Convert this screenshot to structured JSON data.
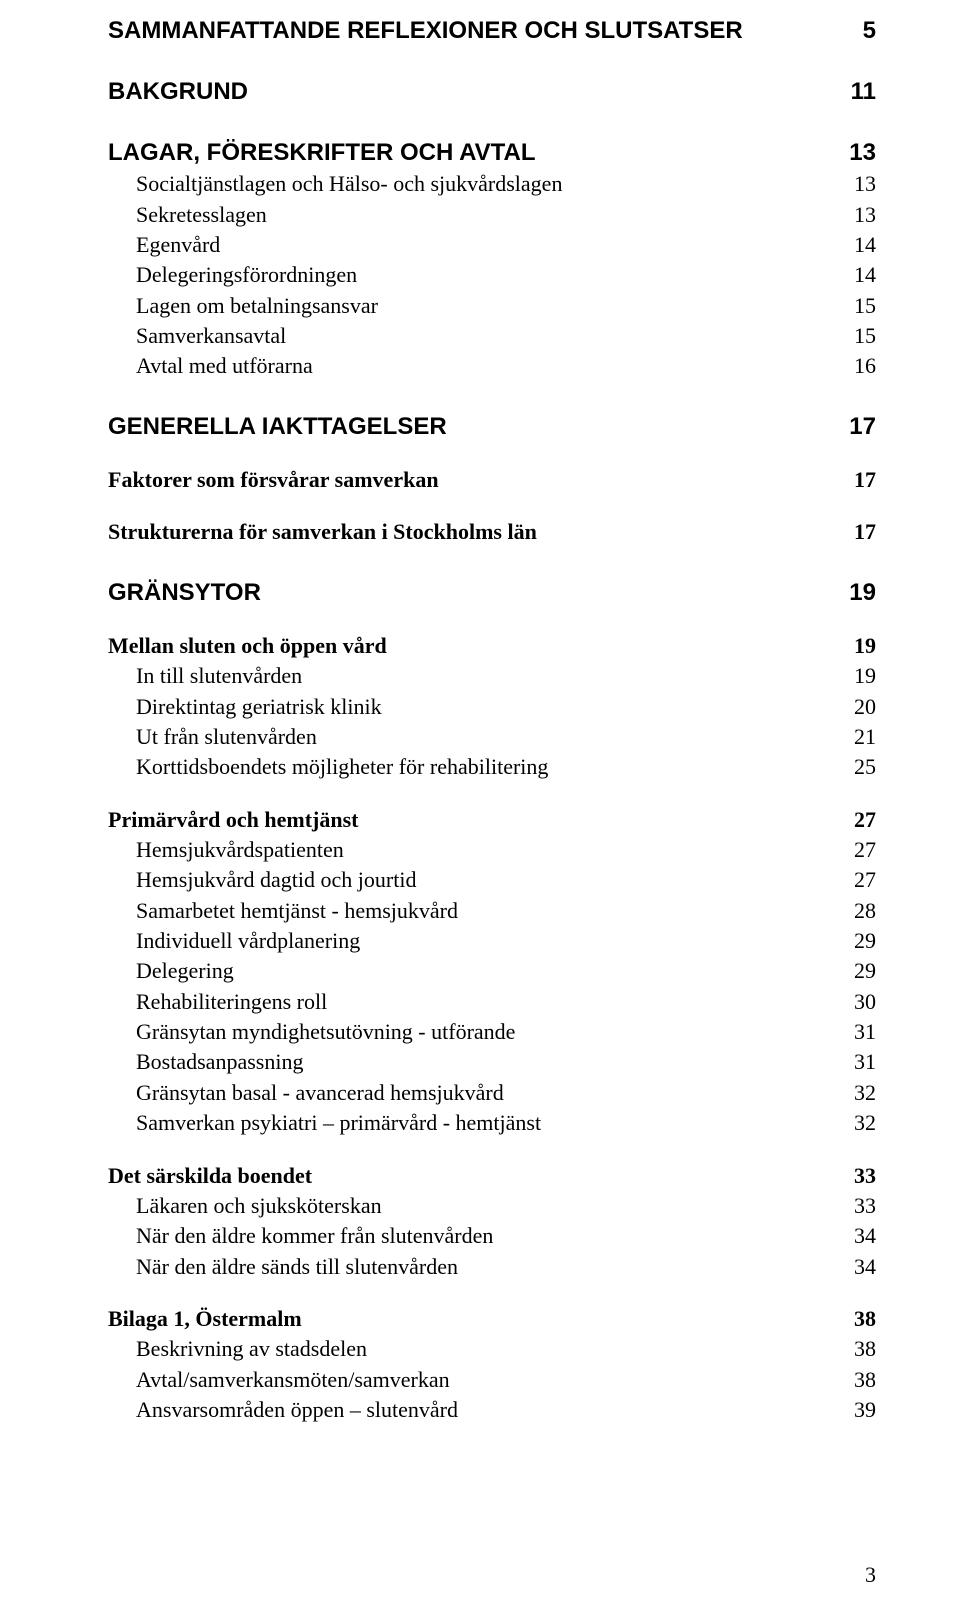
{
  "toc": {
    "groups": [
      {
        "heading": {
          "label": "SAMMANFATTANDE REFLEXIONER OCH SLUTSATSER",
          "page": "5"
        },
        "sections": []
      },
      {
        "heading": {
          "label": "BAKGRUND",
          "page": "11"
        },
        "sections": []
      },
      {
        "heading": {
          "label": "LAGAR, FÖRESKRIFTER OCH AVTAL",
          "page": "13"
        },
        "sections": [
          {
            "label": "Socialtjänstlagen och Hälso- och sjukvårdslagen",
            "page": "13",
            "indent": 1,
            "bold": false
          },
          {
            "label": "Sekretesslagen",
            "page": "13",
            "indent": 1,
            "bold": false
          },
          {
            "label": "Egenvård",
            "page": "14",
            "indent": 1,
            "bold": false
          },
          {
            "label": "Delegeringsförordningen",
            "page": "14",
            "indent": 1,
            "bold": false
          },
          {
            "label": "Lagen om betalningsansvar",
            "page": "15",
            "indent": 1,
            "bold": false
          },
          {
            "label": "Samverkansavtal",
            "page": "15",
            "indent": 1,
            "bold": false
          },
          {
            "label": "Avtal med utförarna",
            "page": "16",
            "indent": 1,
            "bold": false
          }
        ]
      },
      {
        "heading": {
          "label": "GENERELLA IAKTTAGELSER",
          "page": "17"
        },
        "sections": [
          {
            "label": "Faktorer som försvårar samverkan",
            "page": "17",
            "indent": 0,
            "bold": true,
            "gap_before": true
          },
          {
            "label": "Strukturerna för samverkan i Stockholms län",
            "page": "17",
            "indent": 0,
            "bold": true,
            "gap_before": true
          }
        ]
      },
      {
        "heading": {
          "label": "GRÄNSYTOR",
          "page": "19"
        },
        "sections": [
          {
            "label": "Mellan sluten och öppen vård",
            "page": "19",
            "indent": 0,
            "bold": true,
            "gap_before": true
          },
          {
            "label": "In till slutenvården",
            "page": "19",
            "indent": 1,
            "bold": false
          },
          {
            "label": "Direktintag geriatrisk klinik",
            "page": "20",
            "indent": 1,
            "bold": false
          },
          {
            "label": "Ut från slutenvården",
            "page": "21",
            "indent": 1,
            "bold": false
          },
          {
            "label": "Korttidsboendets möjligheter för rehabilitering",
            "page": "25",
            "indent": 1,
            "bold": false
          },
          {
            "label": "Primärvård och hemtjänst",
            "page": "27",
            "indent": 0,
            "bold": true,
            "gap_before": true
          },
          {
            "label": "Hemsjukvårdspatienten",
            "page": "27",
            "indent": 1,
            "bold": false
          },
          {
            "label": "Hemsjukvård dagtid och jourtid",
            "page": "27",
            "indent": 1,
            "bold": false
          },
          {
            "label": "Samarbetet hemtjänst - hemsjukvård",
            "page": "28",
            "indent": 1,
            "bold": false
          },
          {
            "label": "Individuell vårdplanering",
            "page": "29",
            "indent": 1,
            "bold": false
          },
          {
            "label": "Delegering",
            "page": "29",
            "indent": 1,
            "bold": false
          },
          {
            "label": "Rehabiliteringens roll",
            "page": "30",
            "indent": 1,
            "bold": false
          },
          {
            "label": "Gränsytan myndighetsutövning - utförande",
            "page": "31",
            "indent": 1,
            "bold": false
          },
          {
            "label": "Bostadsanpassning",
            "page": "31",
            "indent": 1,
            "bold": false
          },
          {
            "label": "Gränsytan basal - avancerad hemsjukvård",
            "page": "32",
            "indent": 1,
            "bold": false
          },
          {
            "label": "Samverkan psykiatri – primärvård - hemtjänst",
            "page": "32",
            "indent": 1,
            "bold": false
          },
          {
            "label": "Det särskilda boendet",
            "page": "33",
            "indent": 0,
            "bold": true,
            "gap_before": true
          },
          {
            "label": "Läkaren och sjuksköterskan",
            "page": "33",
            "indent": 1,
            "bold": false
          },
          {
            "label": "När den äldre kommer från slutenvården",
            "page": "34",
            "indent": 1,
            "bold": false
          },
          {
            "label": "När den äldre sänds till slutenvården",
            "page": "34",
            "indent": 1,
            "bold": false
          },
          {
            "label": "Bilaga 1, Östermalm",
            "page": "38",
            "indent": 0,
            "bold": true,
            "gap_before": true
          },
          {
            "label": "Beskrivning av stadsdelen",
            "page": "38",
            "indent": 1,
            "bold": false
          },
          {
            "label": "Avtal/samverkansmöten/samverkan",
            "page": "38",
            "indent": 1,
            "bold": false
          },
          {
            "label": "Ansvarsområden öppen – slutenvård",
            "page": "39",
            "indent": 1,
            "bold": false
          }
        ]
      }
    ]
  },
  "page_number": "3"
}
